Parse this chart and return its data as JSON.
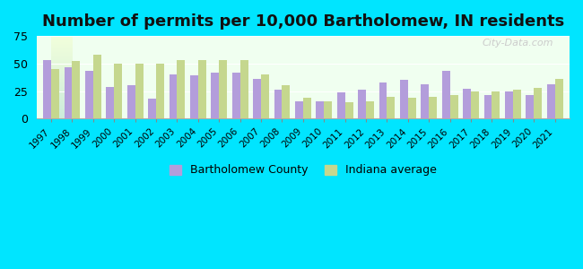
{
  "title": "Number of permits per 10,000 Bartholomew, IN residents",
  "years": [
    1997,
    1998,
    1999,
    2000,
    2001,
    2002,
    2003,
    2004,
    2005,
    2006,
    2007,
    2008,
    2009,
    2010,
    2011,
    2012,
    2013,
    2014,
    2015,
    2016,
    2017,
    2018,
    2019,
    2020,
    2021
  ],
  "bartholomew": [
    53,
    47,
    43,
    29,
    30,
    18,
    40,
    39,
    42,
    42,
    36,
    26,
    16,
    16,
    24,
    26,
    33,
    35,
    31,
    43,
    27,
    21,
    25,
    21,
    31
  ],
  "indiana": [
    45,
    52,
    58,
    50,
    50,
    50,
    53,
    53,
    53,
    53,
    40,
    30,
    19,
    16,
    15,
    16,
    20,
    19,
    20,
    21,
    25,
    25,
    26,
    28,
    36
  ],
  "bar_color_bartholomew": "#b39ddb",
  "bar_color_indiana": "#c5d78e",
  "background_top": "#e8f5e9",
  "background_bottom": "#e0f7fa",
  "plot_bg_top": "#e8f5e9",
  "plot_bg_bottom": "#f0fff0",
  "outer_bg": "#00e5ff",
  "ylim": [
    0,
    75
  ],
  "yticks": [
    0,
    25,
    50,
    75
  ],
  "title_fontsize": 13,
  "legend_bartholomew": "Bartholomew County",
  "legend_indiana": "Indiana average"
}
